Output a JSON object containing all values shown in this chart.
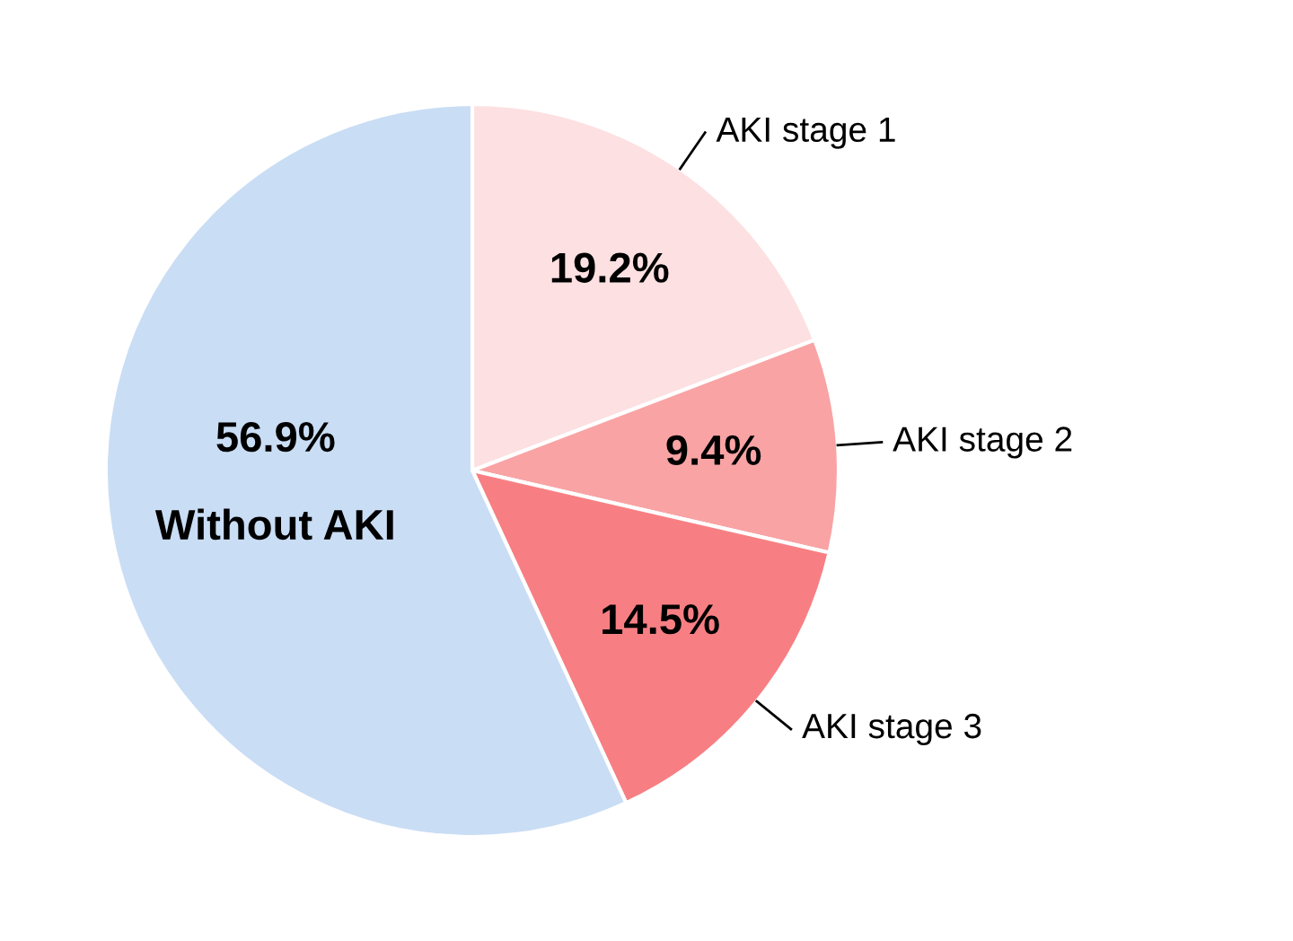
{
  "chart_data": {
    "type": "pie",
    "categories": [
      "AKI stage 1",
      "AKI stage 2",
      "AKI stage 3",
      "Without AKI"
    ],
    "values": [
      19.2,
      9.4,
      14.5,
      56.9
    ],
    "colors": [
      "#fde0e1",
      "#f9a3a4",
      "#f77f83",
      "#c9ddf5"
    ],
    "value_labels": [
      "19.2%",
      "9.4%",
      "14.5%",
      "56.9%"
    ]
  }
}
